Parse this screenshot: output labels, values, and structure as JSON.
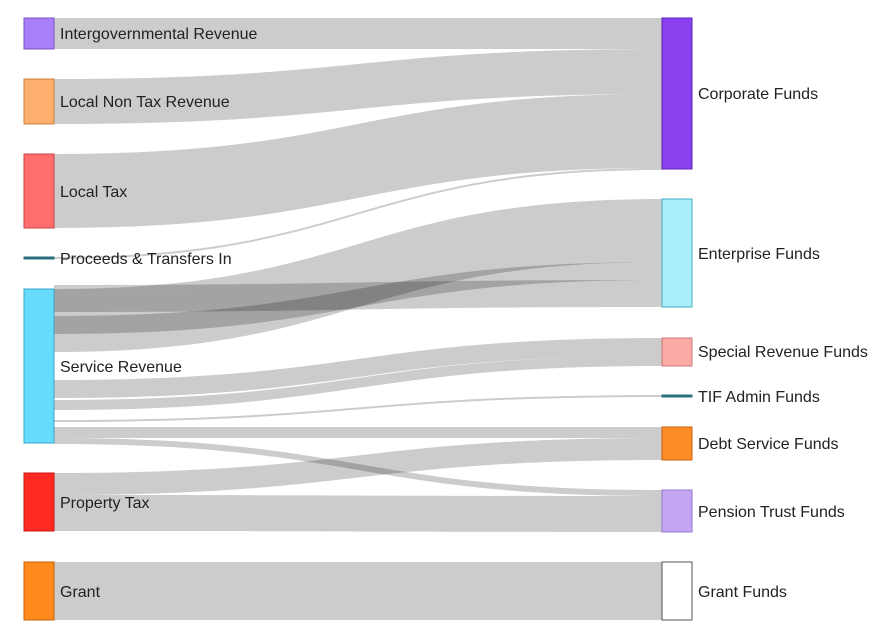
{
  "diagram": {
    "type": "sankey",
    "sources": [
      {
        "id": "intergov",
        "label": "Intergovernmental Revenue",
        "color": "#a97ef7"
      },
      {
        "id": "localnontax",
        "label": "Local Non Tax Revenue",
        "color": "#fdb06e"
      },
      {
        "id": "localtax",
        "label": "Local Tax",
        "color": "#fe6e6e"
      },
      {
        "id": "proceeds",
        "label": "Proceeds & Transfers In",
        "color": "#2a6f7e"
      },
      {
        "id": "service",
        "label": "Service Revenue",
        "color": "#66dbfb"
      },
      {
        "id": "property",
        "label": "Property Tax",
        "color": "#ff2a22"
      },
      {
        "id": "grant",
        "label": "Grant",
        "color": "#fe8a1e"
      }
    ],
    "targets": [
      {
        "id": "corporate",
        "label": "Corporate Funds",
        "color": "#8a40ef"
      },
      {
        "id": "enterprise",
        "label": "Enterprise Funds",
        "color": "#aaeefb"
      },
      {
        "id": "specialrev",
        "label": "Special Revenue Funds",
        "color": "#fbaaa6"
      },
      {
        "id": "tif",
        "label": "TIF Admin Funds",
        "color": "#2a6f7e"
      },
      {
        "id": "debt",
        "label": "Debt Service Funds",
        "color": "#fe8d27"
      },
      {
        "id": "pension",
        "label": "Pension Trust Funds",
        "color": "#c4a6f5"
      },
      {
        "id": "grantfunds",
        "label": "Grant Funds",
        "color": "#ffffff"
      }
    ]
  }
}
